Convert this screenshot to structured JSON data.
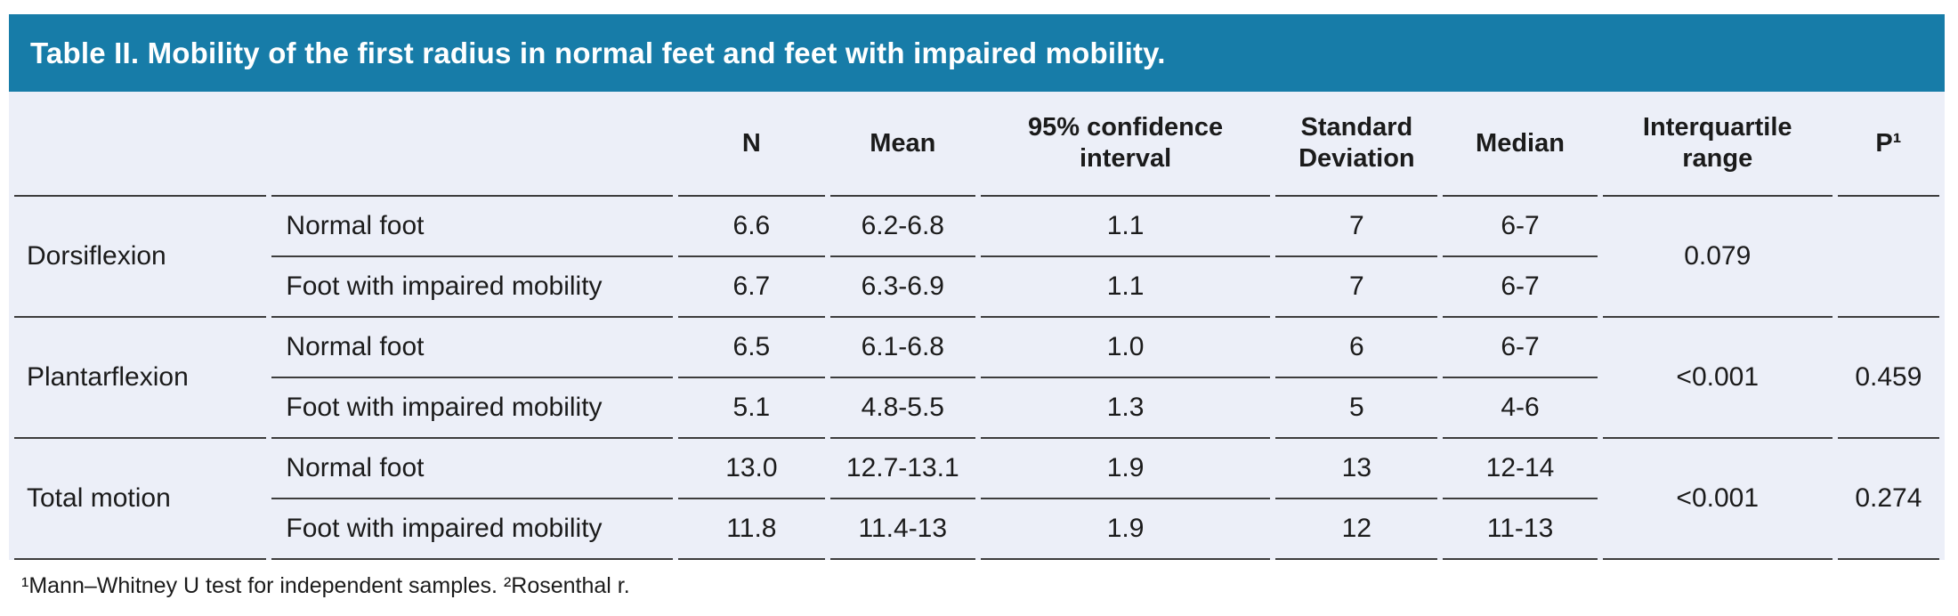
{
  "title": "Table II. Mobility of the first radius in normal feet and feet with impaired mobility.",
  "colors": {
    "header_bg": "#177CA8",
    "body_bg": "#ECEFF8",
    "rule_line": "#3D3D3D",
    "title_text": "#FFFFFF",
    "body_text": "#1B1B1B"
  },
  "columns": {
    "group": "",
    "condition": "",
    "n": "N",
    "mean": "Mean",
    "ci": "95% confidence interval",
    "sd": "Standard Deviation",
    "median": "Median",
    "iqr": "Interquartile range",
    "p": "P¹"
  },
  "groups": [
    {
      "label": "Dorsiflexion",
      "rows": [
        {
          "condition": "Normal foot",
          "n": "6.6",
          "mean": "6.2-6.8",
          "ci": "1.1",
          "sd": "7",
          "median": "6-7"
        },
        {
          "condition": "Foot with impaired mobility",
          "n": "6.7",
          "mean": "6.3-6.9",
          "ci": "1.1",
          "sd": "7",
          "median": "6-7"
        }
      ],
      "iqr": "0.079",
      "p": ""
    },
    {
      "label": "Plantarflexion",
      "rows": [
        {
          "condition": "Normal foot",
          "n": "6.5",
          "mean": "6.1-6.8",
          "ci": "1.0",
          "sd": "6",
          "median": "6-7"
        },
        {
          "condition": "Foot with impaired mobility",
          "n": "5.1",
          "mean": "4.8-5.5",
          "ci": "1.3",
          "sd": "5",
          "median": "4-6"
        }
      ],
      "iqr": "<0.001",
      "p": "0.459"
    },
    {
      "label": "Total motion",
      "rows": [
        {
          "condition": "Normal foot",
          "n": "13.0",
          "mean": "12.7-13.1",
          "ci": "1.9",
          "sd": "13",
          "median": "12-14"
        },
        {
          "condition": "Foot with impaired mobility",
          "n": "11.8",
          "mean": "11.4-13",
          "ci": "1.9",
          "sd": "12",
          "median": "11-13"
        }
      ],
      "iqr": "<0.001",
      "p": "0.274"
    }
  ],
  "footnote": "¹Mann–Whitney U test for independent samples. ²Rosenthal r."
}
